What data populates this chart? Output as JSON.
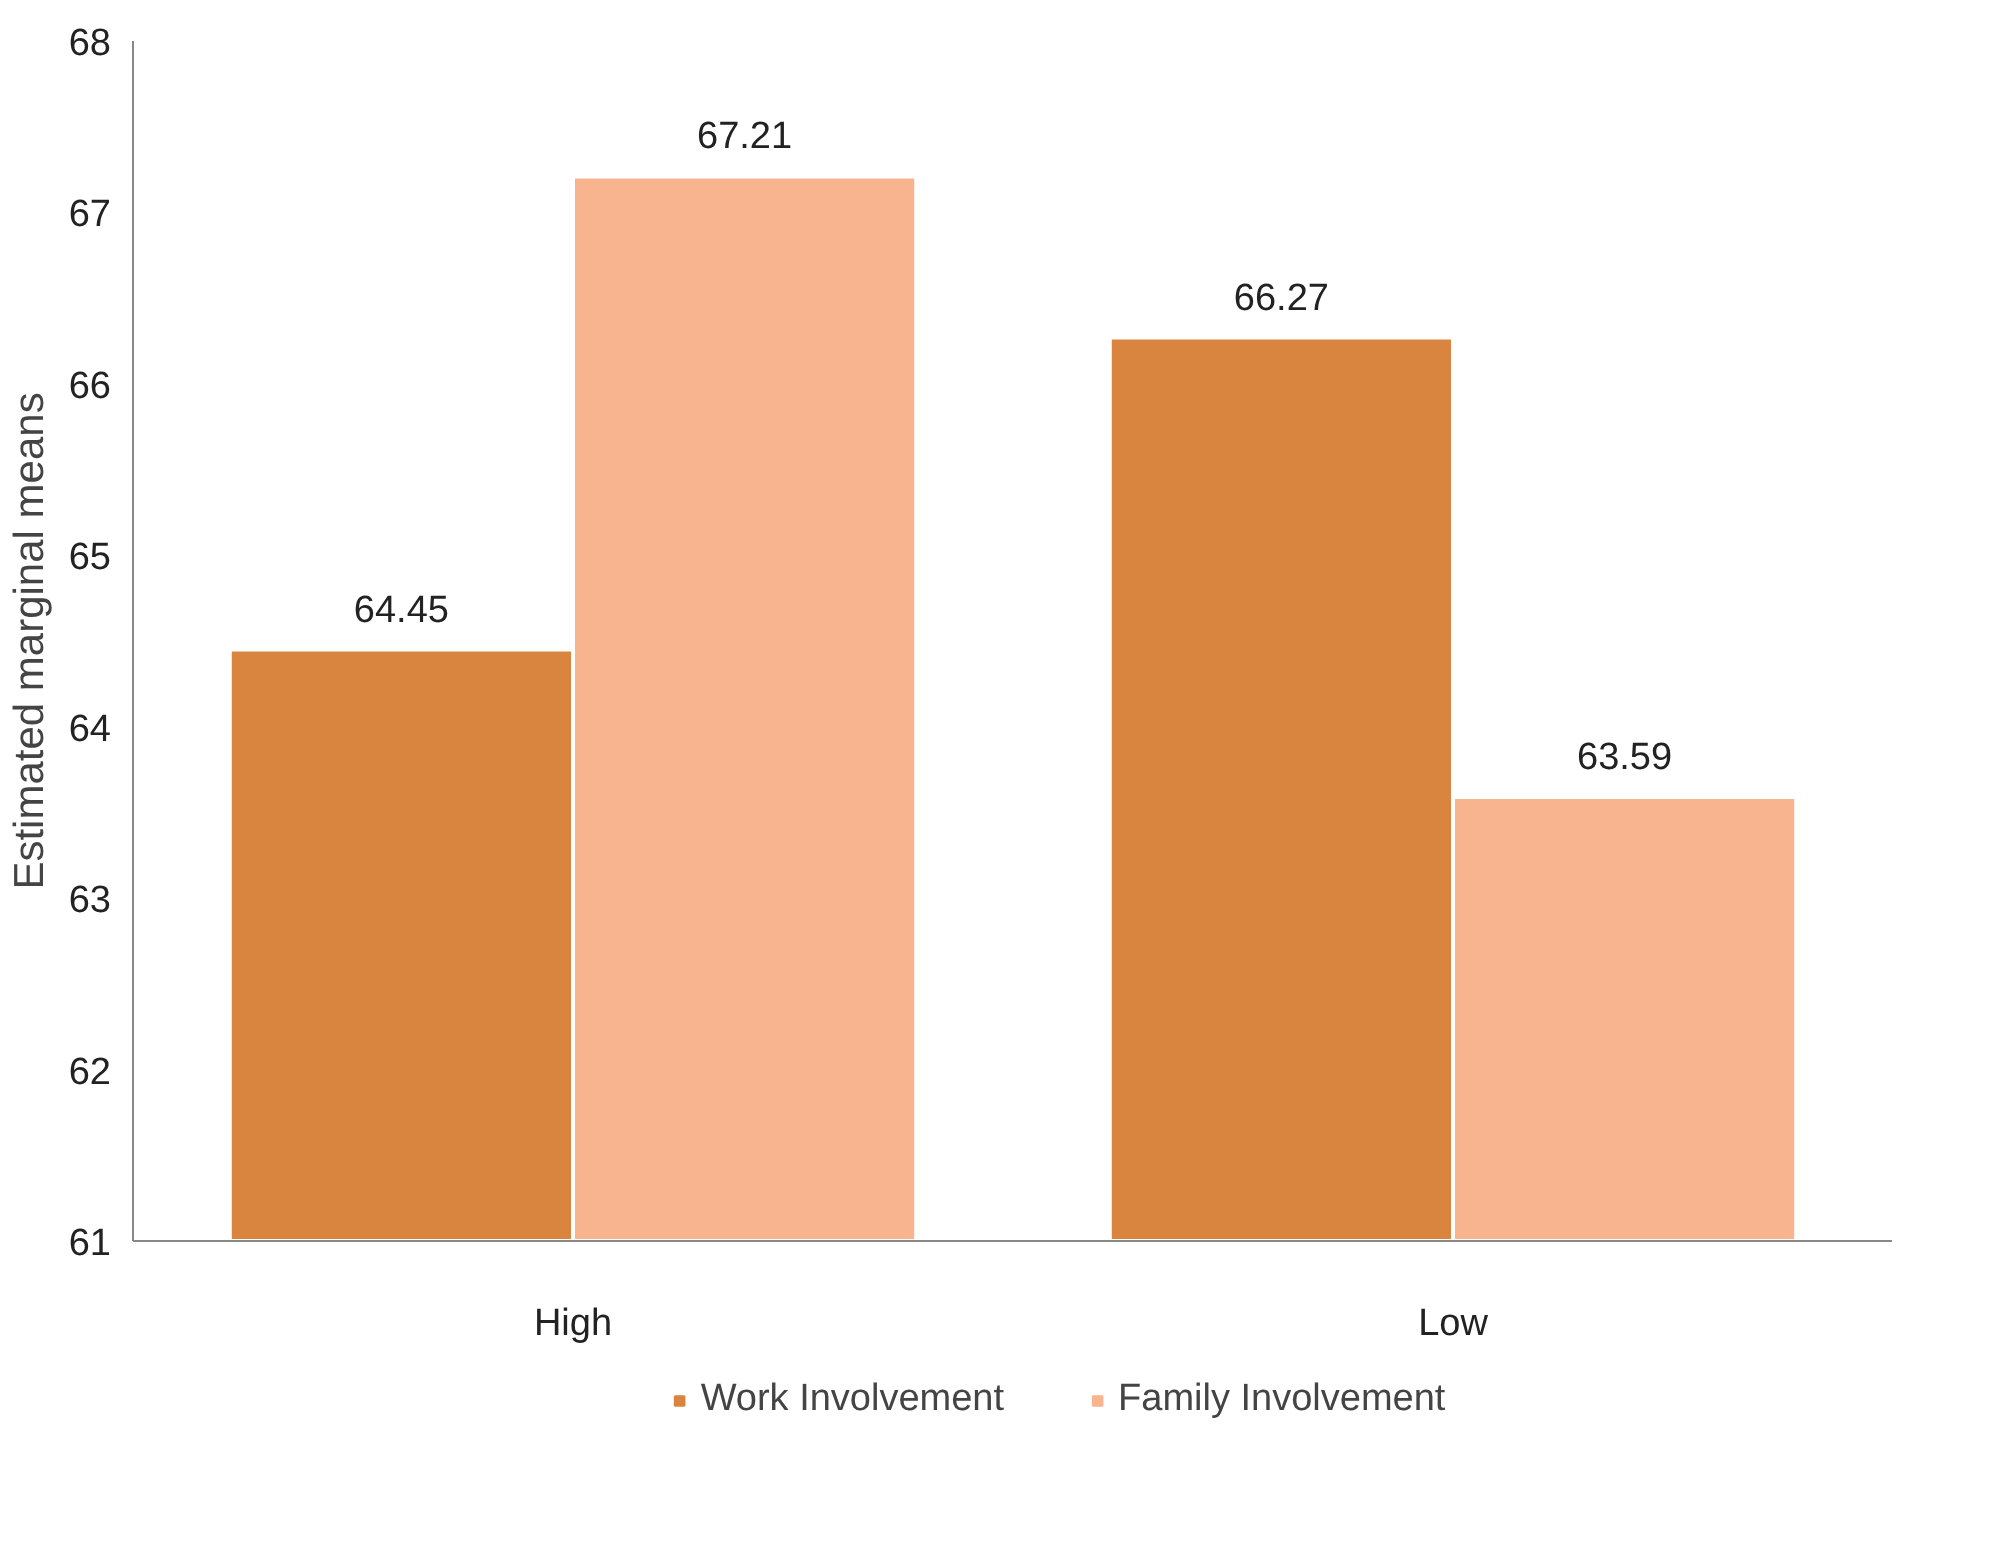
{
  "chart_data": {
    "type": "bar",
    "ylabel": "Estimated marginal means",
    "categories": [
      "High",
      "Low"
    ],
    "series": [
      {
        "name": "Work Involvement",
        "color": "#d9843f",
        "values": [
          64.45,
          66.27
        ]
      },
      {
        "name": "Family Involvement",
        "color": "#f7b48f",
        "values": [
          67.21,
          63.59
        ]
      }
    ],
    "ylim": [
      61,
      68
    ],
    "yticks": [
      61,
      62,
      63,
      64,
      65,
      66,
      67,
      68
    ],
    "grid": false,
    "legend": "bottom",
    "data_labels": true
  }
}
